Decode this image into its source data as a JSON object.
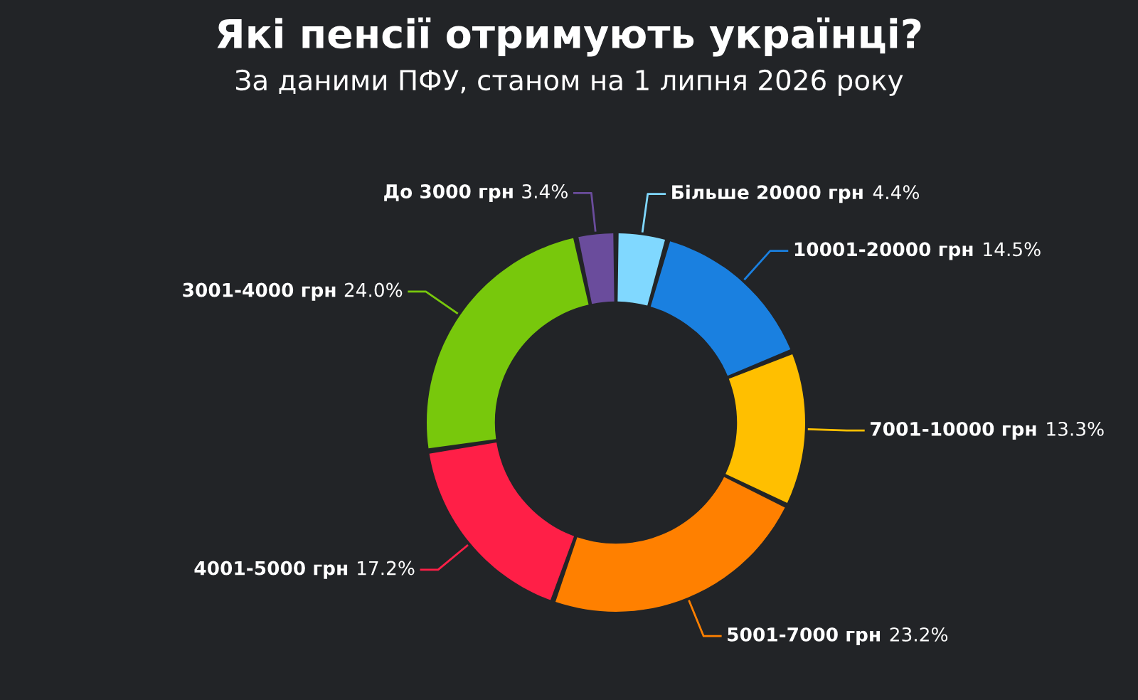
{
  "chart_data": {
    "type": "donut",
    "title": "Які пенсії отримують українці?",
    "subtitle": "За даними ПФУ, станом на 1 липня 2026 року",
    "categories": [
      "Більше 20000 грн",
      "10001-20000 грн",
      "7001-10000 грн",
      "5001-7000 грн",
      "4001-5000 грн",
      "3001-4000 грн",
      "До 3000 грн"
    ],
    "values": [
      4.4,
      14.5,
      13.3,
      23.2,
      17.2,
      24.0,
      3.4
    ],
    "colors": [
      "#80d8ff",
      "#1a80e0",
      "#ffbf00",
      "#ff8000",
      "#ff1f47",
      "#78c80c",
      "#6a4c9c"
    ],
    "value_labels": [
      "4.4%",
      "14.5%",
      "13.3%",
      "23.2%",
      "17.2%",
      "24.0%",
      "3.4%"
    ]
  }
}
